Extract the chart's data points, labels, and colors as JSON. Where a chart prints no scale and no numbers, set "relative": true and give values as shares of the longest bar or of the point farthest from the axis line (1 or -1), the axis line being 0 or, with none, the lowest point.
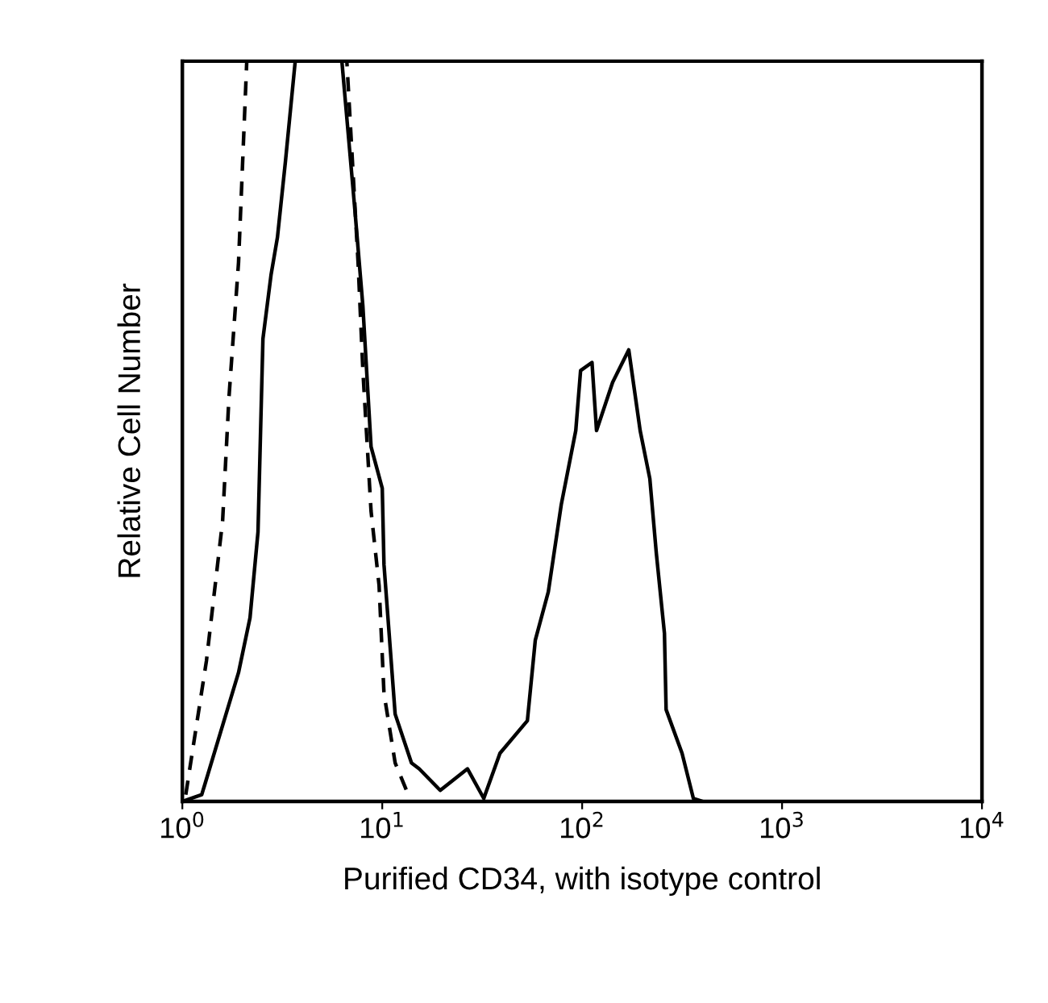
{
  "chart_data": {
    "type": "line",
    "relative": true,
    "log": "x",
    "xlabel": "Purified CD34, with isotype control",
    "ylabel": "Relative Cell Number",
    "xlim": [
      1,
      10000
    ],
    "xticks": [
      {
        "value": 1,
        "label": "10$^{0}$"
      },
      {
        "value": 10,
        "label": "10$^{1}$"
      },
      {
        "value": 100,
        "label": "10$^{2}$"
      },
      {
        "value": 1000,
        "label": "10$^{3}$"
      },
      {
        "value": 10000,
        "label": "10$^{4}$"
      }
    ],
    "grid": false,
    "legend": false,
    "marker": "none",
    "series": [
      {
        "color": "#000000",
        "line_style": "solid",
        "x": [
          1,
          1.25,
          1.91,
          2.18,
          2.39,
          2.53,
          2.78,
          2.99,
          3.28,
          3.67,
          6.28,
          7.29,
          8.0,
          8.79,
          10,
          10.2,
          11.6,
          14.0,
          15.3,
          19.5,
          26.7,
          32.2,
          38.8,
          53.2,
          58.3,
          67.7,
          78.6,
          92.9,
          98.2,
          112,
          118,
          142,
          171,
          195,
          218,
          235,
          258,
          263,
          316,
          360,
          400
        ],
        "values": [
          0,
          0.009,
          0.174,
          0.248,
          0.364,
          0.625,
          0.712,
          0.762,
          0.865,
          1,
          1,
          0.8,
          0.669,
          0.479,
          0.423,
          0.32,
          0.118,
          0.052,
          0.044,
          0.015,
          0.044,
          0.004,
          0.065,
          0.109,
          0.218,
          0.283,
          0.401,
          0.501,
          0.582,
          0.593,
          0.501,
          0.566,
          0.61,
          0.501,
          0.436,
          0.335,
          0.227,
          0.124,
          0.065,
          0.004,
          0
        ]
      },
      {
        "color": "#000000",
        "line_style": "dashed",
        "x": [
          1.04,
          1.32,
          1.59,
          1.71,
          1.91,
          2.1,
          6.65,
          7.57,
          8.0,
          8.79,
          9.64,
          10.2,
          11.6,
          13.5
        ],
        "values": [
          0.009,
          0.19,
          0.379,
          0.545,
          0.728,
          1,
          1,
          0.728,
          0.582,
          0.392,
          0.292,
          0.146,
          0.052,
          0.009
        ]
      }
    ]
  }
}
